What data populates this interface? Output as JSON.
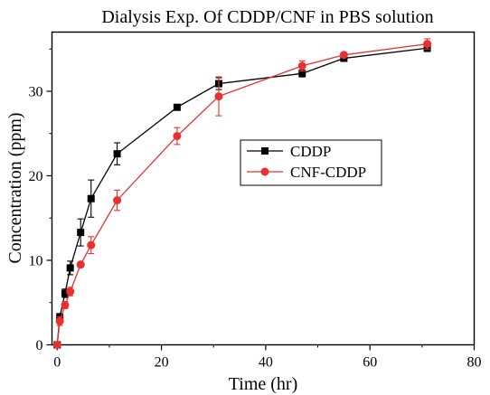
{
  "chart_data": {
    "type": "line",
    "title": "Dialysis Exp. Of CDDP/CNF in PBS solution",
    "xlabel": "Time (hr)",
    "ylabel": "Concentration (ppm)",
    "xlim": [
      -1,
      80
    ],
    "ylim": [
      0,
      37
    ],
    "xticks": [
      0,
      20,
      40,
      60,
      80
    ],
    "yticks": [
      0,
      10,
      20,
      30
    ],
    "grid": false,
    "legend_position": "center-right",
    "series": [
      {
        "name": "CDDP",
        "color": "#000000",
        "marker": "square",
        "x": [
          0,
          0.5,
          1.5,
          2.5,
          4.5,
          6.5,
          11.5,
          23,
          31,
          47,
          55,
          71
        ],
        "y": [
          0,
          3.3,
          6.1,
          9.1,
          13.3,
          17.3,
          22.6,
          28.1,
          30.9,
          32.1,
          33.9,
          35.1
        ],
        "err": [
          0,
          0.4,
          0.5,
          0.8,
          1.6,
          2.2,
          1.3,
          0.3,
          0.7,
          0.4,
          0.3,
          0.4
        ]
      },
      {
        "name": "CNF-CDDP",
        "color": "#e8312f",
        "marker": "circle",
        "x": [
          0,
          0.5,
          1.5,
          2.5,
          4.5,
          6.5,
          11.5,
          23,
          31,
          47,
          55,
          71
        ],
        "y": [
          0,
          2.8,
          4.7,
          6.3,
          9.5,
          11.8,
          17.1,
          24.7,
          29.4,
          33.0,
          34.3,
          35.6
        ],
        "err": [
          0,
          0.5,
          0.4,
          0.5,
          0.3,
          1.0,
          1.2,
          1.0,
          2.3,
          0.6,
          0.2,
          0.6
        ]
      }
    ]
  }
}
